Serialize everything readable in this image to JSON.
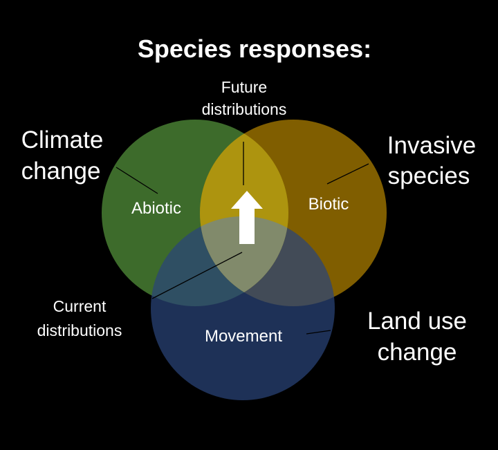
{
  "title": "Species responses:",
  "labels": {
    "future": [
      "Future",
      "distributions"
    ],
    "current": [
      "Current",
      "distributions"
    ],
    "climate": [
      "Climate",
      "change"
    ],
    "invasive": [
      "Invasive",
      "species"
    ],
    "landuse": [
      "Land use",
      "change"
    ]
  },
  "circles": {
    "abiotic": {
      "label": "Abiotic",
      "color": "#3d6b2b"
    },
    "biotic": {
      "label": "Biotic",
      "color": "#9c7300"
    },
    "movement": {
      "label": "Movement",
      "color": "#2a4478"
    }
  },
  "arrow": {
    "color": "#ffffff",
    "icon": "up-arrow-icon"
  }
}
